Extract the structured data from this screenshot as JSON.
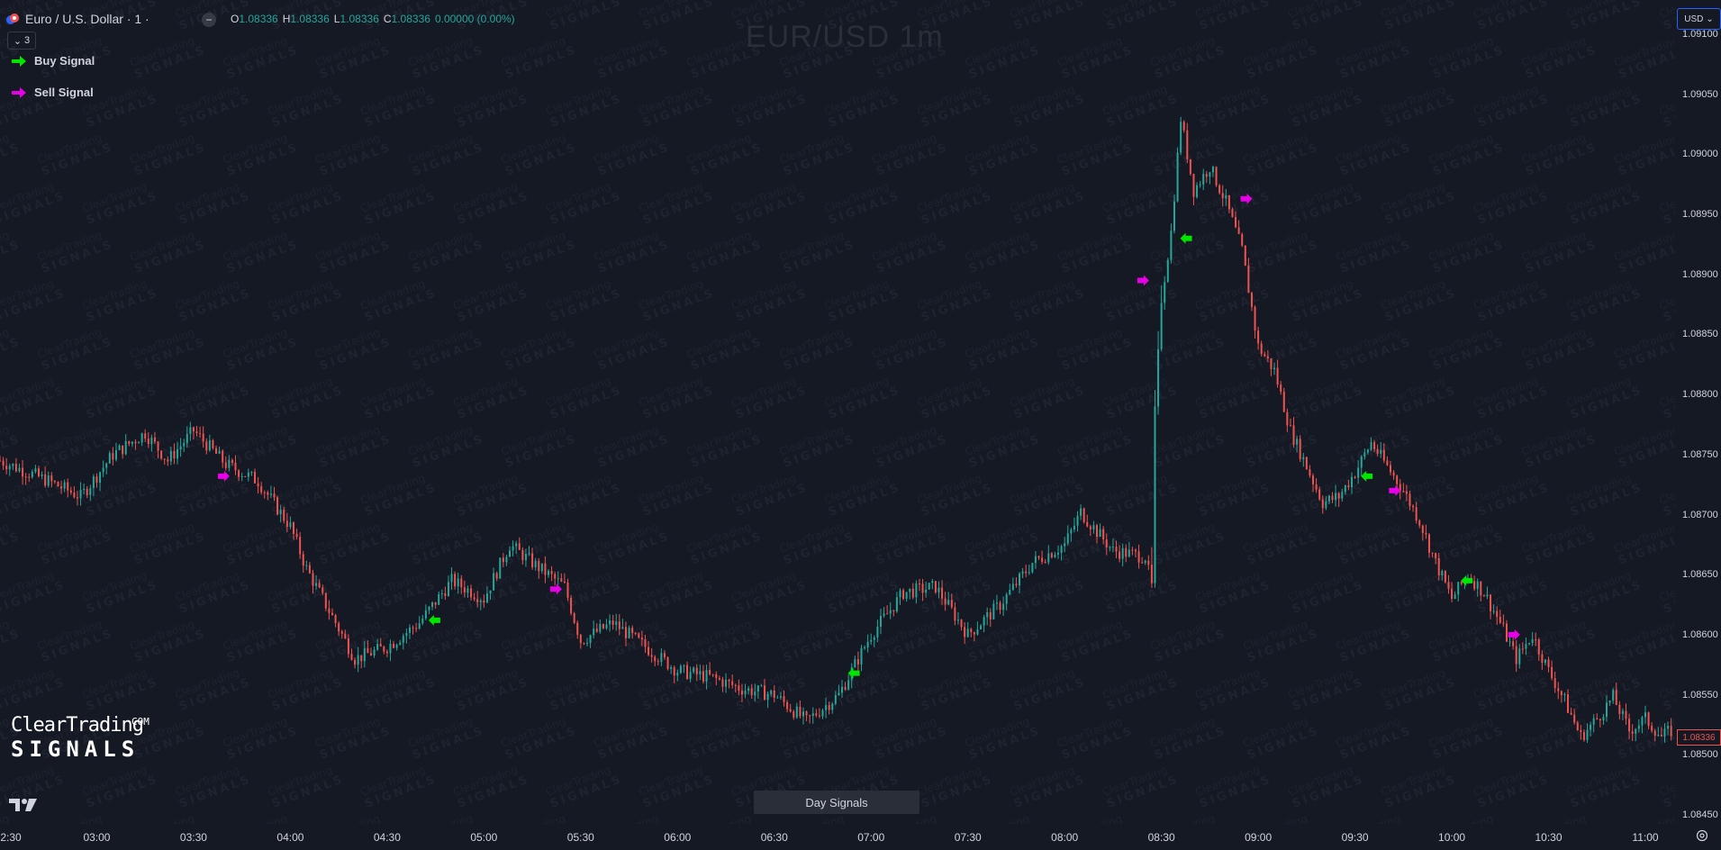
{
  "header": {
    "symbol_title": "Euro / U.S. Dollar · 1 ·",
    "ohlc": {
      "o_label": "O",
      "o_value": "1.08336",
      "h_label": "H",
      "h_value": "1.08336",
      "l_label": "L",
      "l_value": "1.08336",
      "c_label": "C",
      "c_value": "1.08336",
      "change": "0.00000 (0.00%)"
    },
    "collapse_icon": "minus-icon",
    "indicator_count": "3"
  },
  "legend": {
    "buy_label": "Buy Signal",
    "sell_label": "Sell Signal",
    "buy_color": "#00e600",
    "sell_color": "#e600e6"
  },
  "chart_title": "EUR/USD 1m",
  "currency": "USD",
  "last_price_tag": "1.08336",
  "brand": {
    "line1": "ClearTrading",
    "line2": "SIGNALS",
    "suffix": "COM",
    "watermark_line1": "ClearTrading",
    "watermark_line2": "SIGNALS"
  },
  "day_signals_button": "Day Signals",
  "colors": {
    "background": "#151924",
    "up": "#26a69a",
    "down": "#ef5350",
    "axis_text": "#d1d4dc"
  },
  "chart_data": {
    "type": "candlestick",
    "price_ticks": [
      "1.09100",
      "1.09050",
      "1.09000",
      "1.08950",
      "1.08900",
      "1.08850",
      "1.08800",
      "1.08750",
      "1.08700",
      "1.08650",
      "1.08600",
      "1.08550",
      "1.08500",
      "1.08450"
    ],
    "time_ticks": [
      "2:30",
      "03:00",
      "03:30",
      "04:00",
      "04:30",
      "05:00",
      "05:30",
      "06:00",
      "06:30",
      "07:00",
      "07:30",
      "08:00",
      "08:30",
      "09:00",
      "09:30",
      "10:00",
      "10:30",
      "11:00"
    ],
    "ylim": [
      1.08443,
      1.09112
    ],
    "close_path": [
      [
        "02:30",
        1.08745
      ],
      [
        "02:45",
        1.08728
      ],
      [
        "02:55",
        1.08715
      ],
      [
        "03:05",
        1.0875
      ],
      [
        "03:15",
        1.08768
      ],
      [
        "03:22",
        1.08745
      ],
      [
        "03:30",
        1.0877
      ],
      [
        "03:40",
        1.08742
      ],
      [
        "03:50",
        1.08728
      ],
      [
        "04:00",
        1.0869
      ],
      [
        "04:05",
        1.08655
      ],
      [
        "04:12",
        1.0862
      ],
      [
        "04:20",
        1.0858
      ],
      [
        "04:30",
        1.0859
      ],
      [
        "04:40",
        1.0861
      ],
      [
        "04:50",
        1.08645
      ],
      [
        "05:00",
        1.0863
      ],
      [
        "05:08",
        1.08675
      ],
      [
        "05:15",
        1.0866
      ],
      [
        "05:25",
        1.0864
      ],
      [
        "05:30",
        1.08595
      ],
      [
        "05:40",
        1.0861
      ],
      [
        "05:50",
        1.0859
      ],
      [
        "06:00",
        1.0857
      ],
      [
        "06:10",
        1.08565
      ],
      [
        "06:20",
        1.08555
      ],
      [
        "06:30",
        1.0855
      ],
      [
        "06:40",
        1.08528
      ],
      [
        "06:50",
        1.0855
      ],
      [
        "07:00",
        1.086
      ],
      [
        "07:10",
        1.08635
      ],
      [
        "07:20",
        1.0864
      ],
      [
        "07:30",
        1.086
      ],
      [
        "07:40",
        1.08625
      ],
      [
        "07:50",
        1.0866
      ],
      [
        "08:00",
        1.08675
      ],
      [
        "08:05",
        1.08702
      ],
      [
        "08:15",
        1.0867
      ],
      [
        "08:25",
        1.08665
      ],
      [
        "08:27",
        1.0864
      ],
      [
        "08:28",
        1.08785
      ],
      [
        "08:30",
        1.0888
      ],
      [
        "08:33",
        1.08935
      ],
      [
        "08:36",
        1.0903
      ],
      [
        "08:40",
        1.0897
      ],
      [
        "08:45",
        1.0899
      ],
      [
        "08:50",
        1.0896
      ],
      [
        "08:55",
        1.0892
      ],
      [
        "09:00",
        1.0884
      ],
      [
        "09:05",
        1.0882
      ],
      [
        "09:10",
        1.0877
      ],
      [
        "09:15",
        1.0874
      ],
      [
        "09:20",
        1.0871
      ],
      [
        "09:25",
        1.08715
      ],
      [
        "09:30",
        1.08735
      ],
      [
        "09:35",
        1.0876
      ],
      [
        "09:40",
        1.0874
      ],
      [
        "09:45",
        1.0872
      ],
      [
        "09:50",
        1.08695
      ],
      [
        "09:55",
        1.0866
      ],
      [
        "10:00",
        1.0863
      ],
      [
        "10:05",
        1.0865
      ],
      [
        "10:10",
        1.08635
      ],
      [
        "10:15",
        1.0861
      ],
      [
        "10:20",
        1.0858
      ],
      [
        "10:25",
        1.086
      ],
      [
        "10:30",
        1.0857
      ],
      [
        "10:35",
        1.08545
      ],
      [
        "10:40",
        1.08515
      ],
      [
        "10:45",
        1.0853
      ],
      [
        "10:50",
        1.08548
      ],
      [
        "10:55",
        1.0852
      ],
      [
        "11:00",
        1.0853
      ],
      [
        "11:05",
        1.08515
      ],
      [
        "11:08",
        1.0852
      ]
    ],
    "signals": [
      {
        "type": "sell",
        "time": "03:42",
        "price": 1.08732
      },
      {
        "type": "buy",
        "time": "04:42",
        "price": 1.08612
      },
      {
        "type": "sell",
        "time": "05:25",
        "price": 1.08638
      },
      {
        "type": "buy",
        "time": "06:52",
        "price": 1.08568
      },
      {
        "type": "sell",
        "time": "08:27",
        "price": 1.08895
      },
      {
        "type": "buy",
        "time": "08:35",
        "price": 1.0893
      },
      {
        "type": "sell",
        "time": "08:59",
        "price": 1.08963
      },
      {
        "type": "buy",
        "time": "09:31",
        "price": 1.08732
      },
      {
        "type": "sell",
        "time": "09:45",
        "price": 1.0872
      },
      {
        "type": "buy",
        "time": "10:02",
        "price": 1.08645
      },
      {
        "type": "sell",
        "time": "10:22",
        "price": 1.086
      }
    ]
  }
}
